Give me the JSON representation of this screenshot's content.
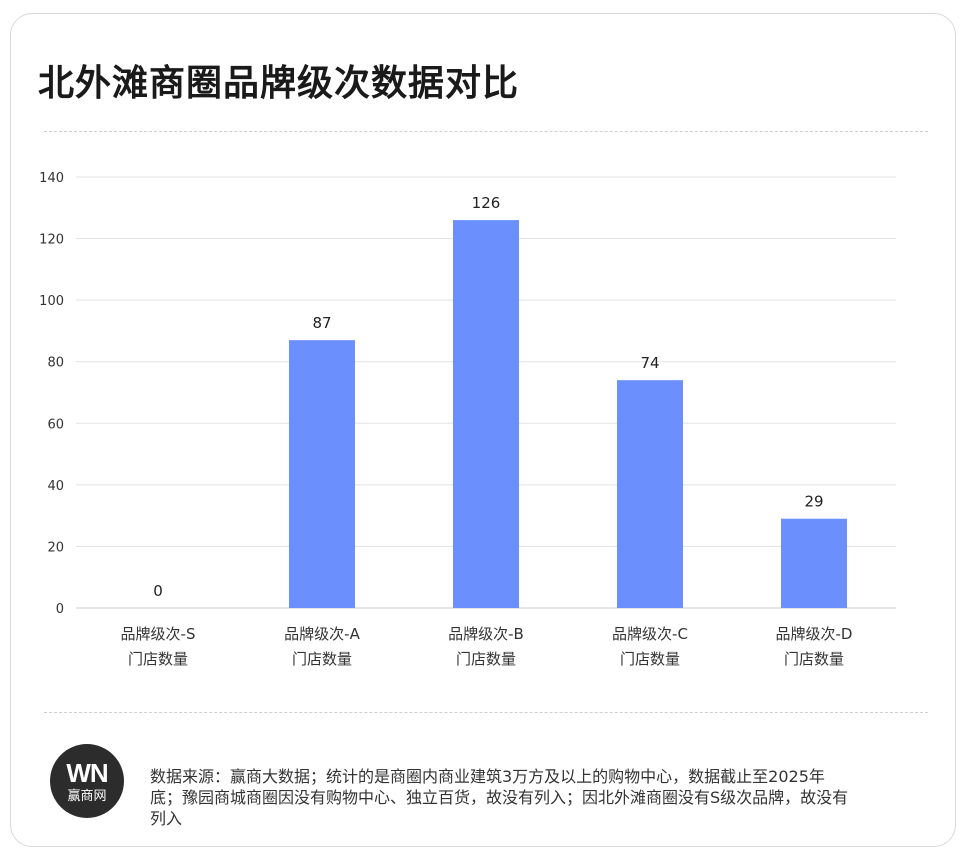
{
  "title": "北外滩商圈品牌级次数据对比",
  "chart_data": {
    "type": "bar",
    "title": "北外滩商圈品牌级次数据对比",
    "categories": [
      [
        "品牌级次-S",
        "门店数量"
      ],
      [
        "品牌级次-A",
        "门店数量"
      ],
      [
        "品牌级次-B",
        "门店数量"
      ],
      [
        "品牌级次-C",
        "门店数量"
      ],
      [
        "品牌级次-D",
        "门店数量"
      ]
    ],
    "values": [
      0,
      87,
      126,
      74,
      29
    ],
    "ylim": [
      0,
      140
    ],
    "yticks": [
      0,
      20,
      40,
      60,
      80,
      100,
      120,
      140
    ],
    "grid": true,
    "bar_color": "#6b8ffc",
    "data_labels": true
  },
  "footer": {
    "logo_mark": "WN",
    "logo_text": "赢商网",
    "source_text": "数据来源：赢商大数据；统计的是商圈内商业建筑3万方及以上的购物中心，数据截止至2025年底；豫园商城商圈因没有购物中心、独立百货，故没有列入；因北外滩商圈没有S级次品牌，故没有列入"
  }
}
